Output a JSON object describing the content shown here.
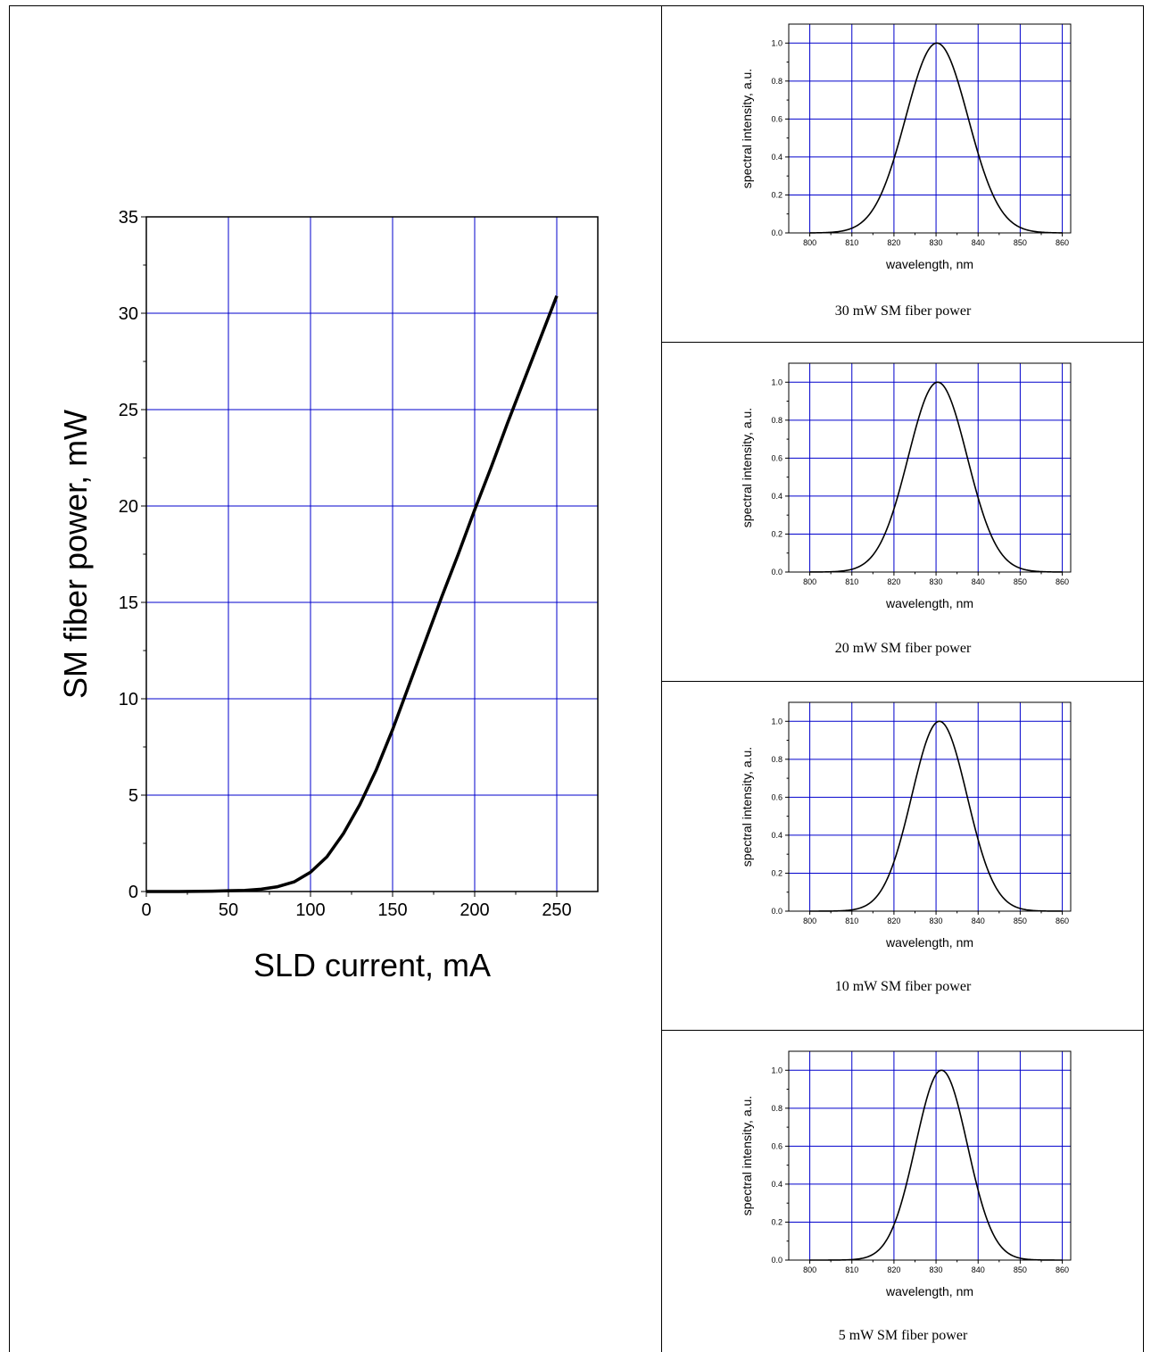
{
  "chart_data": [
    {
      "type": "line",
      "xlabel": "SLD current, mA",
      "ylabel": "SM fiber power, mW",
      "xlim": [
        0,
        275
      ],
      "ylim": [
        0,
        35
      ],
      "xticks": [
        0,
        50,
        100,
        150,
        200,
        250
      ],
      "yticks": [
        0,
        5,
        10,
        15,
        20,
        25,
        30,
        35
      ],
      "grid": true,
      "series": [
        {
          "x": [
            0,
            20,
            40,
            60,
            70,
            80,
            90,
            100,
            110,
            120,
            130,
            140,
            150,
            160,
            170,
            180,
            190,
            200,
            210,
            220,
            230,
            240,
            250
          ],
          "y": [
            0,
            0,
            0.02,
            0.06,
            0.12,
            0.25,
            0.5,
            1.0,
            1.8,
            3.0,
            4.5,
            6.3,
            8.4,
            10.7,
            13.0,
            15.3,
            17.5,
            19.8,
            22.0,
            24.3,
            26.5,
            28.7,
            30.9
          ]
        }
      ]
    },
    {
      "type": "line",
      "caption": "30 mW SM fiber power",
      "xlabel": "wavelength, nm",
      "ylabel": "spectral intensity, a.u.",
      "xlim": [
        795,
        862
      ],
      "ylim": [
        0,
        1.1
      ],
      "xticks": [
        800,
        810,
        820,
        830,
        840,
        850,
        860
      ],
      "yticks": [
        "0.0",
        "0.2",
        "0.4",
        "0.6",
        "0.8",
        "1.0"
      ],
      "grid": true,
      "series": [
        {
          "center": 830.2,
          "fwhm": 17.5,
          "range": [
            800,
            860
          ]
        }
      ]
    },
    {
      "type": "line",
      "caption": "20 mW SM fiber power",
      "xlabel": "wavelength, nm",
      "ylabel": "spectral intensity, a.u.",
      "xlim": [
        795,
        862
      ],
      "ylim": [
        0,
        1.1
      ],
      "xticks": [
        800,
        810,
        820,
        830,
        840,
        850,
        860
      ],
      "yticks": [
        "0.0",
        "0.2",
        "0.4",
        "0.6",
        "0.8",
        "1.0"
      ],
      "grid": true,
      "series": [
        {
          "center": 830.4,
          "fwhm": 16.5,
          "range": [
            800,
            860
          ]
        }
      ]
    },
    {
      "type": "line",
      "caption": "10 mW SM fiber power",
      "xlabel": "wavelength, nm",
      "ylabel": "spectral intensity, a.u.",
      "xlim": [
        795,
        862
      ],
      "ylim": [
        0,
        1.1
      ],
      "xticks": [
        800,
        810,
        820,
        830,
        840,
        850,
        860
      ],
      "yticks": [
        "0.0",
        "0.2",
        "0.4",
        "0.6",
        "0.8",
        "1.0"
      ],
      "grid": true,
      "series": [
        {
          "center": 830.8,
          "fwhm": 15.5,
          "range": [
            800,
            860
          ]
        }
      ]
    },
    {
      "type": "line",
      "caption": "5 mW SM fiber power",
      "xlabel": "wavelength, nm",
      "ylabel": "spectral intensity, a.u.",
      "xlim": [
        795,
        862
      ],
      "ylim": [
        0,
        1.1
      ],
      "xticks": [
        800,
        810,
        820,
        830,
        840,
        850,
        860
      ],
      "yticks": [
        "0.0",
        "0.2",
        "0.4",
        "0.6",
        "0.8",
        "1.0"
      ],
      "grid": true,
      "series": [
        {
          "center": 831.3,
          "fwhm": 14.5,
          "range": [
            800,
            860
          ]
        }
      ]
    }
  ],
  "colors": {
    "grid": "#0000cc",
    "curve": "#000000",
    "frame": "#000000"
  }
}
